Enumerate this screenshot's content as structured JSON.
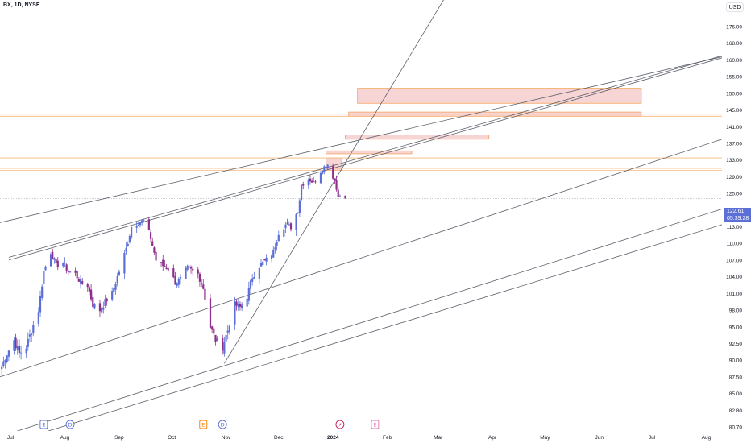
{
  "header": {
    "symbol": "BX, 1D, NYSE",
    "currency": "USD"
  },
  "price_tag": {
    "price": "122.61",
    "countdown": "05:39:28",
    "color": "#5b6fd6"
  },
  "colors": {
    "bull": "#5b6fd6",
    "bear": "#8e2f8e",
    "trendline": "#5d606b",
    "hline_orange": "#f5b97a",
    "zone_fill": "#f0a2a2",
    "zone_border": "#f5a25a",
    "axis_text": "#131722"
  },
  "events": [
    {
      "icon": "earnings-icon",
      "label": "E",
      "color": "#5b6fd6",
      "date": "2023-07-20"
    },
    {
      "icon": "dividend-icon",
      "label": "D",
      "color": "#5b6fd6",
      "date": "2023-08-04"
    },
    {
      "icon": "earnings-icon",
      "label": "E",
      "color": "#f57c00",
      "date": "2023-10-19"
    },
    {
      "icon": "dividend-icon",
      "label": "D",
      "color": "#5b6fd6",
      "date": "2023-10-30"
    },
    {
      "icon": "split-icon",
      "label": "⚡",
      "color": "#c2185b",
      "date": "2024-01-05"
    },
    {
      "icon": "earnings-icon",
      "label": "E",
      "color": "#e573b0",
      "date": "2024-01-25"
    }
  ],
  "chart_data": {
    "type": "candlestick",
    "title": "",
    "symbol": "BX, 1D, NYSE",
    "ylabel": "USD",
    "ylim": [
      80.7,
      176
    ],
    "xlim": [
      "2023-06-25",
      "2024-08-10"
    ],
    "y_ticks": [
      176.0,
      168.0,
      160.0,
      155.0,
      150.0,
      145.0,
      141.0,
      137.0,
      133.0,
      129.0,
      125.0,
      117.0,
      113.0,
      110.0,
      107.0,
      104.0,
      101.0,
      98.0,
      95.0,
      92.5,
      90.0,
      87.5,
      85.0,
      82.8,
      80.7
    ],
    "x_ticks": [
      {
        "label": "Jul",
        "date": "2023-07-01"
      },
      {
        "label": "Aug",
        "date": "2023-08-01"
      },
      {
        "label": "Sep",
        "date": "2023-09-01"
      },
      {
        "label": "Oct",
        "date": "2023-10-01"
      },
      {
        "label": "Nov",
        "date": "2023-11-01"
      },
      {
        "label": "Dec",
        "date": "2023-12-01"
      },
      {
        "label": "2024",
        "date": "2024-01-01"
      },
      {
        "label": "Feb",
        "date": "2024-02-01"
      },
      {
        "label": "Mar",
        "date": "2024-03-01"
      },
      {
        "label": "Apr",
        "date": "2024-04-01"
      },
      {
        "label": "May",
        "date": "2024-05-01"
      },
      {
        "label": "Jun",
        "date": "2024-06-01"
      },
      {
        "label": "Jul",
        "date": "2024-07-01"
      },
      {
        "label": "Aug",
        "date": "2024-08-01"
      }
    ],
    "last_price": 122.61,
    "closes": [
      [
        "2023-06-26",
        89.0
      ],
      [
        "2023-06-28",
        90.5
      ],
      [
        "2023-07-03",
        93.0
      ],
      [
        "2023-07-06",
        91.0
      ],
      [
        "2023-07-10",
        92.0
      ],
      [
        "2023-07-13",
        94.5
      ],
      [
        "2023-07-17",
        98.0
      ],
      [
        "2023-07-20",
        105.0
      ],
      [
        "2023-07-24",
        108.5
      ],
      [
        "2023-07-27",
        106.0
      ],
      [
        "2023-07-31",
        106.5
      ],
      [
        "2023-08-03",
        105.0
      ],
      [
        "2023-08-07",
        104.5
      ],
      [
        "2023-08-10",
        103.0
      ],
      [
        "2023-08-14",
        102.5
      ],
      [
        "2023-08-17",
        99.0
      ],
      [
        "2023-08-21",
        98.0
      ],
      [
        "2023-08-24",
        99.5
      ],
      [
        "2023-08-28",
        101.0
      ],
      [
        "2023-08-31",
        104.0
      ],
      [
        "2023-09-05",
        109.0
      ],
      [
        "2023-09-08",
        113.0
      ],
      [
        "2023-09-12",
        114.0
      ],
      [
        "2023-09-15",
        114.5
      ],
      [
        "2023-09-19",
        111.0
      ],
      [
        "2023-09-22",
        107.0
      ],
      [
        "2023-09-26",
        106.0
      ],
      [
        "2023-09-29",
        105.5
      ],
      [
        "2023-10-03",
        103.0
      ],
      [
        "2023-10-06",
        103.5
      ],
      [
        "2023-10-10",
        105.5
      ],
      [
        "2023-10-13",
        105.0
      ],
      [
        "2023-10-16",
        104.5
      ],
      [
        "2023-10-19",
        102.0
      ],
      [
        "2023-10-23",
        95.0
      ],
      [
        "2023-10-26",
        93.0
      ],
      [
        "2023-10-30",
        92.0
      ],
      [
        "2023-11-02",
        94.5
      ],
      [
        "2023-11-06",
        99.0
      ],
      [
        "2023-11-09",
        98.5
      ],
      [
        "2023-11-13",
        100.5
      ],
      [
        "2023-11-16",
        104.0
      ],
      [
        "2023-11-20",
        106.0
      ],
      [
        "2023-11-24",
        107.0
      ],
      [
        "2023-11-28",
        108.5
      ],
      [
        "2023-12-01",
        112.0
      ],
      [
        "2023-12-05",
        113.5
      ],
      [
        "2023-12-08",
        113.0
      ],
      [
        "2023-12-12",
        117.0
      ],
      [
        "2023-12-14",
        127.0
      ],
      [
        "2023-12-18",
        128.5
      ],
      [
        "2023-12-21",
        127.5
      ],
      [
        "2023-12-26",
        131.0
      ],
      [
        "2023-12-29",
        132.0
      ],
      [
        "2024-01-02",
        128.0
      ],
      [
        "2024-01-04",
        124.0
      ],
      [
        "2024-01-08",
        122.61
      ]
    ],
    "horizontal_levels": [
      144.0,
      143.5,
      133.5,
      131.0,
      130.5,
      122.61
    ],
    "zones": [
      {
        "from": "2023-12-28",
        "to": "2024-01-06",
        "low": 130.5,
        "high": 133.5
      },
      {
        "from": "2024-01-15",
        "to": "2024-06-25",
        "low": 147.0,
        "high": 151.5
      },
      {
        "from": "2024-01-10",
        "to": "2024-06-25",
        "low": 143.5,
        "high": 144.5
      },
      {
        "from": "2024-01-08",
        "to": "2024-03-30",
        "low": 138.0,
        "high": 139.0
      },
      {
        "from": "2023-12-28",
        "to": "2024-02-15",
        "low": 134.5,
        "high": 135.2
      }
    ],
    "trendlines": [
      {
        "from": [
          "2023-06-25",
          114.0
        ],
        "to": [
          "2024-08-10",
          161.5
        ]
      },
      {
        "from": [
          "2023-06-30",
          107.5
        ],
        "to": [
          "2024-08-10",
          162.0
        ]
      },
      {
        "from": [
          "2023-06-30",
          107.0
        ],
        "to": [
          "2024-08-10",
          161.0
        ]
      },
      {
        "from": [
          "2023-10-31",
          89.5
        ],
        "to": [
          "2024-03-05",
          190.0
        ]
      },
      {
        "from": [
          "2023-06-25",
          87.5
        ],
        "to": [
          "2024-08-10",
          138.0
        ]
      },
      {
        "from": [
          "2023-06-25",
          79.5
        ],
        "to": [
          "2024-08-10",
          117.5
        ]
      },
      {
        "from": [
          "2023-07-05",
          79.0
        ],
        "to": [
          "2024-08-10",
          113.5
        ]
      }
    ]
  }
}
